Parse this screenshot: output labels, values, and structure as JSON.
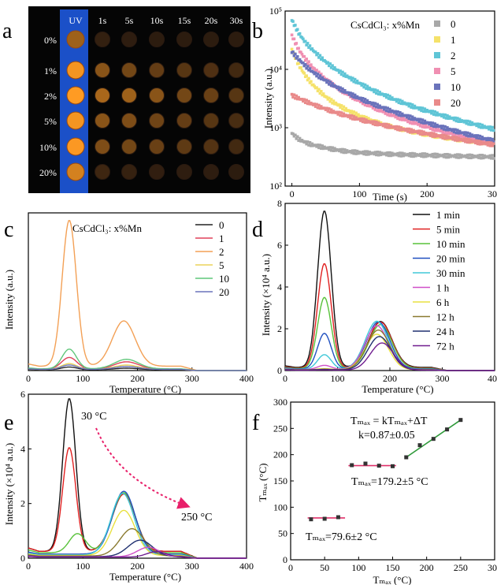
{
  "panels": {
    "a": {
      "label": "a",
      "cols": [
        "UV",
        "1s",
        "5s",
        "10s",
        "15s",
        "20s",
        "30s"
      ],
      "rows": [
        "0%",
        "1%",
        "2%",
        "5%",
        "10%",
        "20%"
      ],
      "uv_color": "#1b50c8",
      "brightness": [
        [
          0.55,
          0.05,
          0.03,
          0.02,
          0.02,
          0.02,
          0.02
        ],
        [
          0.95,
          0.45,
          0.35,
          0.28,
          0.22,
          0.18,
          0.12
        ],
        [
          1.0,
          0.6,
          0.55,
          0.45,
          0.35,
          0.3,
          0.22
        ],
        [
          0.95,
          0.45,
          0.4,
          0.33,
          0.28,
          0.22,
          0.15
        ],
        [
          0.98,
          0.4,
          0.35,
          0.3,
          0.25,
          0.2,
          0.12
        ],
        [
          0.8,
          0.1,
          0.06,
          0.04,
          0.03,
          0.03,
          0.02
        ]
      ]
    },
    "b": {
      "label": "b"
    },
    "c": {
      "label": "c"
    },
    "d": {
      "label": "d"
    },
    "e": {
      "label": "e"
    },
    "f": {
      "label": "f"
    }
  },
  "chart_data": [
    {
      "panel": "b",
      "type": "scatter",
      "title": "CsCdCl₃: x%Mn",
      "xlabel": "Time (s)",
      "ylabel": "Intensity (a.u.)",
      "xlim": [
        -10,
        300
      ],
      "xticks": [
        0,
        100,
        200,
        300
      ],
      "ylim": [
        100,
        100000
      ],
      "yscale": "log",
      "yticks": [
        100,
        1000,
        10000,
        100000
      ],
      "ytick_labels": [
        "10²",
        "10³",
        "10⁴",
        "10⁵"
      ],
      "legend_loc": "top-right",
      "x": [
        0,
        10,
        20,
        30,
        40,
        50,
        60,
        70,
        80,
        90,
        100,
        110,
        120,
        130,
        140,
        150,
        160,
        170,
        180,
        190,
        200,
        210,
        220,
        230,
        240,
        250,
        260,
        270,
        280,
        290,
        300
      ],
      "series": [
        {
          "name": "0",
          "color": "#a8a8a8",
          "values": [
            800,
            640,
            560,
            510,
            480,
            450,
            430,
            410,
            395,
            385,
            375,
            370,
            365,
            360,
            355,
            350,
            348,
            345,
            342,
            340,
            338,
            335,
            333,
            330,
            328,
            326,
            324,
            322,
            320,
            318,
            316
          ]
        },
        {
          "name": "1",
          "color": "#f5e26a",
          "values": [
            22000,
            12000,
            7800,
            5600,
            4300,
            3400,
            2800,
            2400,
            2050,
            1800,
            1600,
            1430,
            1300,
            1190,
            1100,
            1020,
            960,
            900,
            850,
            805,
            765,
            730,
            700,
            670,
            645,
            620,
            600,
            580,
            560,
            545,
            530
          ]
        },
        {
          "name": "2",
          "color": "#5fc5d6",
          "values": [
            70000,
            42000,
            29000,
            22000,
            17000,
            13500,
            11000,
            9200,
            7800,
            6700,
            5800,
            5000,
            4400,
            3900,
            3500,
            3100,
            2800,
            2550,
            2300,
            2100,
            1950,
            1800,
            1650,
            1530,
            1420,
            1320,
            1230,
            1150,
            1070,
            1000,
            940
          ]
        },
        {
          "name": "5",
          "color": "#f08fb2",
          "values": [
            38000,
            22000,
            15000,
            11000,
            8500,
            6800,
            5500,
            4600,
            3900,
            3350,
            2900,
            2550,
            2250,
            2000,
            1800,
            1620,
            1470,
            1340,
            1230,
            1130,
            1040,
            960,
            890,
            830,
            770,
            720,
            680,
            640,
            600,
            570,
            540
          ]
        },
        {
          "name": "10",
          "color": "#6a73bb",
          "values": [
            20000,
            15000,
            11500,
            9200,
            7600,
            6400,
            5450,
            4700,
            4100,
            3600,
            3200,
            2850,
            2550,
            2300,
            2080,
            1890,
            1720,
            1570,
            1440,
            1320,
            1220,
            1120,
            1040,
            960,
            890,
            830,
            770,
            720,
            670,
            630,
            590
          ]
        },
        {
          "name": "20",
          "color": "#e98a8a",
          "values": [
            3600,
            3200,
            2850,
            2550,
            2300,
            2100,
            1900,
            1750,
            1620,
            1500,
            1390,
            1300,
            1220,
            1150,
            1080,
            1020,
            965,
            915,
            870,
            830,
            790,
            750,
            715,
            685,
            655,
            625,
            600,
            575,
            550,
            530,
            510
          ]
        }
      ]
    },
    {
      "panel": "c",
      "type": "line",
      "title": "CsCdCl₃: x%Mn",
      "xlabel": "Temperature (°C)",
      "ylabel": "Intensity (a.u.)",
      "xlim": [
        0,
        400
      ],
      "xticks": [
        0,
        100,
        200,
        300,
        400
      ],
      "legend_loc": "top-right",
      "series": [
        {
          "name": "0",
          "color": "#222222",
          "peaks": [
            [
              75,
              0.018,
              14
            ],
            [
              180,
              0.01,
              22
            ]
          ],
          "base": 0.006
        },
        {
          "name": "1",
          "color": "#e0405a",
          "peaks": [
            [
              75,
              0.08,
              14
            ],
            [
              180,
              0.05,
              22
            ]
          ],
          "base": 0.01
        },
        {
          "name": "2",
          "color": "#f3a055",
          "peaks": [
            [
              75,
              1.0,
              13
            ],
            [
              175,
              0.31,
              21
            ]
          ],
          "base": 0.03
        },
        {
          "name": "5",
          "color": "#ecd45a",
          "peaks": [
            [
              75,
              0.04,
              14
            ],
            [
              180,
              0.03,
              22
            ]
          ],
          "base": 0.008
        },
        {
          "name": "10",
          "color": "#5fc77a",
          "peaks": [
            [
              75,
              0.135,
              13
            ],
            [
              180,
              0.065,
              22
            ]
          ],
          "base": 0.012
        },
        {
          "name": "20",
          "color": "#6a73bb",
          "peaks": [
            [
              75,
              0.03,
              14
            ],
            [
              180,
              0.02,
              22
            ]
          ],
          "base": 0.008
        }
      ]
    },
    {
      "panel": "d",
      "type": "line",
      "xlabel": "Temperature (°C)",
      "ylabel": "Intensity (×10⁴ a.u.)",
      "xlim": [
        0,
        400
      ],
      "xticks": [
        0,
        100,
        200,
        300,
        400
      ],
      "ylim": [
        0,
        8
      ],
      "yticks": [
        0,
        2,
        4,
        6,
        8
      ],
      "legend_loc": "top-right",
      "series": [
        {
          "name": "1 min",
          "color": "#111111",
          "peaks": [
            [
              75,
              7.5,
              13
            ],
            [
              182,
              2.2,
              22
            ]
          ],
          "base": 0.15
        },
        {
          "name": "5 min",
          "color": "#e02020",
          "peaks": [
            [
              75,
              5.0,
              13
            ],
            [
              182,
              2.2,
              22
            ]
          ],
          "base": 0.12
        },
        {
          "name": "10 min",
          "color": "#58c23a",
          "peaks": [
            [
              75,
              3.4,
              13
            ],
            [
              182,
              2.1,
              22
            ]
          ],
          "base": 0.1
        },
        {
          "name": "20 min",
          "color": "#2050c0",
          "peaks": [
            [
              75,
              1.7,
              13
            ],
            [
              178,
              2.25,
              22
            ]
          ],
          "base": 0.08
        },
        {
          "name": "30 min",
          "color": "#40c8d8",
          "peaks": [
            [
              75,
              0.7,
              13
            ],
            [
              175,
              2.3,
              22
            ]
          ],
          "base": 0.06
        },
        {
          "name": "1 h",
          "color": "#d050c8",
          "peaks": [
            [
              75,
              0.2,
              13
            ],
            [
              175,
              2.1,
              22
            ]
          ],
          "base": 0.05
        },
        {
          "name": "6 h",
          "color": "#e8e040",
          "peaks": [
            [
              75,
              0.05,
              13
            ],
            [
              175,
              1.7,
              22
            ]
          ],
          "base": 0.04
        },
        {
          "name": "12 h",
          "color": "#8a7a30",
          "peaks": [
            [
              75,
              0.03,
              13
            ],
            [
              178,
              1.9,
              22
            ]
          ],
          "base": 0.04
        },
        {
          "name": "24 h",
          "color": "#203070",
          "peaks": [
            [
              75,
              0.02,
              13
            ],
            [
              180,
              1.6,
              22
            ]
          ],
          "base": 0.03
        },
        {
          "name": "72 h",
          "color": "#701e90",
          "peaks": [
            [
              75,
              0.01,
              13
            ],
            [
              185,
              1.3,
              22
            ]
          ],
          "base": 0.02
        }
      ]
    },
    {
      "panel": "e",
      "type": "line",
      "xlabel": "Temperature (°C)",
      "ylabel": "Intensity (×10⁴ a.u.)",
      "xlim": [
        0,
        400
      ],
      "xticks": [
        0,
        100,
        200,
        300,
        400
      ],
      "ylim": [
        0,
        6
      ],
      "yticks": [
        0,
        2,
        4,
        6
      ],
      "annotations": [
        "30 °C",
        "250 °C"
      ],
      "series": [
        {
          "color": "#111111",
          "peaks": [
            [
              75,
              5.6,
              12
            ],
            [
              175,
              2.1,
              21
            ]
          ],
          "base": 0.25
        },
        {
          "color": "#e02020",
          "peaks": [
            [
              75,
              3.8,
              12
            ],
            [
              175,
              2.1,
              21
            ]
          ],
          "base": 0.25
        },
        {
          "color": "#58c23a",
          "peaks": [
            [
              90,
              0.7,
              15
            ],
            [
              175,
              2.2,
              21
            ]
          ],
          "base": 0.2
        },
        {
          "color": "#2050c0",
          "peaks": [
            [
              175,
              2.3,
              21
            ]
          ],
          "base": 0.15
        },
        {
          "color": "#40c8d8",
          "peaks": [
            [
              173,
              2.25,
              21
            ]
          ],
          "base": 0.12
        },
        {
          "color": "#e8e040",
          "peaks": [
            [
              175,
              1.65,
              21
            ]
          ],
          "base": 0.1
        },
        {
          "color": "#8a7a30",
          "peaks": [
            [
              190,
              1.0,
              22
            ]
          ],
          "base": 0.08
        },
        {
          "color": "#203070",
          "peaks": [
            [
              205,
              0.6,
              22
            ]
          ],
          "base": 0.06
        },
        {
          "color": "#d050c8",
          "peaks": [
            [
              220,
              0.35,
              20
            ]
          ],
          "base": 0.05
        },
        {
          "color": "#701e90",
          "peaks": [
            [
              235,
              0.2,
              18
            ]
          ],
          "base": 0.04
        }
      ]
    },
    {
      "panel": "f",
      "type": "scatter",
      "xlabel": "Tₘₐₓ (°C)",
      "ylabel": "Tₘₐₓ (°C)",
      "xlim": [
        0,
        300
      ],
      "xticks": [
        0,
        50,
        100,
        150,
        200,
        250,
        300
      ],
      "ylim": [
        0,
        300
      ],
      "yticks": [
        0,
        50,
        100,
        150,
        200,
        250,
        300
      ],
      "groups": [
        {
          "color": "#e0306a",
          "x": [
            30,
            50,
            70
          ],
          "y": [
            77,
            78,
            81
          ],
          "fit": [
            [
              25,
              79.6
            ],
            [
              80,
              79.6
            ]
          ],
          "label": "Tₘₐₓ=79.6±2 °C"
        },
        {
          "color": "#e0306a",
          "x": [
            90,
            110,
            130,
            150
          ],
          "y": [
            180,
            183,
            179,
            178
          ],
          "fit": [
            [
              85,
              179.2
            ],
            [
              155,
              179.2
            ]
          ],
          "label": "Tₘₐₓ=179.2±5 °C"
        },
        {
          "color": "#2f9a3a",
          "x": [
            170,
            190,
            210,
            230,
            250
          ],
          "y": [
            195,
            218,
            230,
            248,
            266
          ],
          "fit": [
            [
              170,
              195
            ],
            [
              250,
              266
            ]
          ],
          "label": "Tₘₐₓ = kTₘₐₓ+ΔT",
          "label2": "k=0.87±0.05"
        }
      ]
    }
  ]
}
